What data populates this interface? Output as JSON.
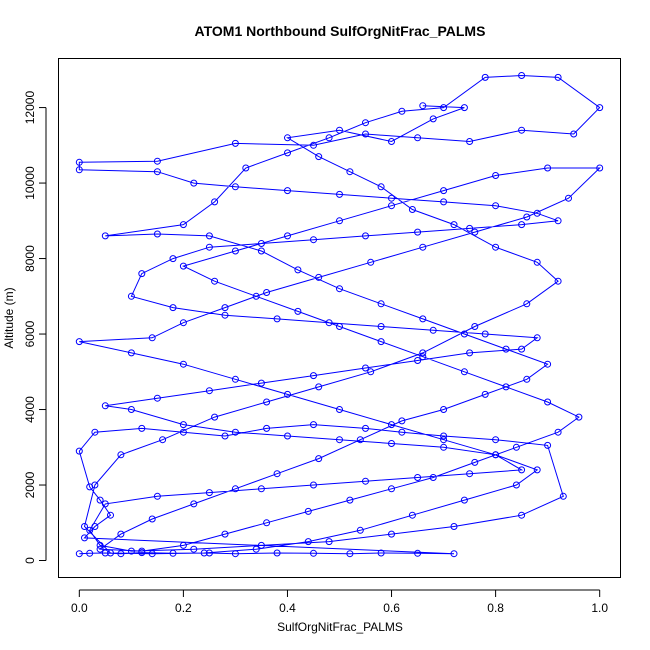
{
  "chart_data": {
    "type": "line",
    "title": "ATOM1 Northbound SulfOrgNitFrac_PALMS",
    "xlabel": "SulfOrgNitFrac_PALMS",
    "ylabel": "Altitude (m)",
    "xlim": [
      -0.04,
      1.04
    ],
    "ylim": [
      -450,
      13300
    ],
    "xticks": [
      0.0,
      0.2,
      0.4,
      0.6,
      0.8,
      1.0
    ],
    "xtick_labels": [
      "0.0",
      "0.2",
      "0.4",
      "0.6",
      "0.8",
      "1.0"
    ],
    "yticks": [
      0,
      2000,
      4000,
      6000,
      8000,
      10000,
      12000
    ],
    "ytick_labels": [
      "0",
      "2000",
      "4000",
      "6000",
      "8000",
      "10000",
      "12000"
    ],
    "grid": false,
    "marker": "open-circle",
    "series": [
      {
        "color": "#0000ff",
        "points": [
          [
            0.0,
            180
          ],
          [
            0.02,
            190
          ],
          [
            0.05,
            200
          ],
          [
            0.08,
            180
          ],
          [
            0.12,
            210
          ],
          [
            0.18,
            190
          ],
          [
            0.25,
            200
          ],
          [
            0.3,
            180
          ],
          [
            0.38,
            200
          ],
          [
            0.45,
            190
          ],
          [
            0.52,
            180
          ],
          [
            0.58,
            200
          ],
          [
            0.65,
            190
          ],
          [
            0.72,
            180
          ],
          [
            0.01,
            600
          ],
          [
            0.03,
            900
          ],
          [
            0.06,
            1200
          ],
          [
            0.04,
            1600
          ],
          [
            0.02,
            1950
          ],
          [
            0.0,
            2900
          ],
          [
            0.03,
            3400
          ],
          [
            0.12,
            3500
          ],
          [
            0.2,
            3400
          ],
          [
            0.28,
            3300
          ],
          [
            0.36,
            3500
          ],
          [
            0.45,
            3600
          ],
          [
            0.55,
            3500
          ],
          [
            0.62,
            3400
          ],
          [
            0.7,
            3300
          ],
          [
            0.8,
            3200
          ],
          [
            0.9,
            3050
          ],
          [
            0.93,
            1700
          ],
          [
            0.85,
            1200
          ],
          [
            0.72,
            900
          ],
          [
            0.6,
            700
          ],
          [
            0.48,
            500
          ],
          [
            0.35,
            400
          ],
          [
            0.22,
            300
          ],
          [
            0.1,
            250
          ],
          [
            0.04,
            400
          ],
          [
            0.02,
            800
          ],
          [
            0.05,
            1500
          ],
          [
            0.15,
            1700
          ],
          [
            0.25,
            1800
          ],
          [
            0.35,
            1900
          ],
          [
            0.45,
            2000
          ],
          [
            0.55,
            2100
          ],
          [
            0.65,
            2200
          ],
          [
            0.75,
            2300
          ],
          [
            0.85,
            2400
          ],
          [
            0.8,
            2800
          ],
          [
            0.7,
            3000
          ],
          [
            0.6,
            3100
          ],
          [
            0.5,
            3200
          ],
          [
            0.4,
            3300
          ],
          [
            0.3,
            3400
          ],
          [
            0.2,
            3600
          ],
          [
            0.1,
            4000
          ],
          [
            0.05,
            4100
          ],
          [
            0.15,
            4300
          ],
          [
            0.25,
            4500
          ],
          [
            0.35,
            4700
          ],
          [
            0.45,
            4900
          ],
          [
            0.55,
            5100
          ],
          [
            0.65,
            5300
          ],
          [
            0.75,
            5500
          ],
          [
            0.85,
            5600
          ],
          [
            0.88,
            5900
          ],
          [
            0.78,
            6000
          ],
          [
            0.68,
            6100
          ],
          [
            0.58,
            6200
          ],
          [
            0.48,
            6300
          ],
          [
            0.38,
            6400
          ],
          [
            0.28,
            6500
          ],
          [
            0.18,
            6700
          ],
          [
            0.1,
            7000
          ],
          [
            0.12,
            7600
          ],
          [
            0.18,
            8000
          ],
          [
            0.25,
            8300
          ],
          [
            0.35,
            8400
          ],
          [
            0.45,
            8500
          ],
          [
            0.55,
            8600
          ],
          [
            0.65,
            8700
          ],
          [
            0.75,
            8800
          ],
          [
            0.85,
            8900
          ],
          [
            0.92,
            9000
          ],
          [
            0.88,
            9200
          ],
          [
            0.8,
            9400
          ],
          [
            0.7,
            9500
          ],
          [
            0.6,
            9600
          ],
          [
            0.5,
            9700
          ],
          [
            0.4,
            9800
          ],
          [
            0.3,
            9900
          ],
          [
            0.22,
            10000
          ],
          [
            0.15,
            10300
          ],
          [
            0.0,
            10350
          ],
          [
            0.0,
            10550
          ],
          [
            0.15,
            10580
          ],
          [
            0.3,
            11050
          ],
          [
            0.45,
            11000
          ],
          [
            0.55,
            11300
          ],
          [
            0.65,
            11200
          ],
          [
            0.75,
            11100
          ],
          [
            0.85,
            11400
          ],
          [
            0.95,
            11300
          ],
          [
            1.0,
            12000
          ],
          [
            0.92,
            12800
          ],
          [
            0.85,
            12850
          ],
          [
            0.78,
            12800
          ],
          [
            0.7,
            12000
          ],
          [
            0.62,
            11900
          ],
          [
            0.55,
            11600
          ],
          [
            0.48,
            11200
          ],
          [
            0.4,
            10800
          ],
          [
            0.32,
            10400
          ],
          [
            0.26,
            9500
          ],
          [
            0.2,
            8900
          ],
          [
            0.05,
            8600
          ],
          [
            0.15,
            8650
          ],
          [
            0.25,
            8600
          ],
          [
            0.35,
            8200
          ],
          [
            0.42,
            7700
          ],
          [
            0.5,
            7200
          ],
          [
            0.58,
            6800
          ],
          [
            0.66,
            6400
          ],
          [
            0.74,
            6000
          ],
          [
            0.82,
            5600
          ],
          [
            0.9,
            5200
          ],
          [
            0.86,
            4800
          ],
          [
            0.78,
            4400
          ],
          [
            0.7,
            4000
          ],
          [
            0.62,
            3700
          ],
          [
            0.54,
            3200
          ],
          [
            0.46,
            2700
          ],
          [
            0.38,
            2300
          ],
          [
            0.3,
            1900
          ],
          [
            0.22,
            1500
          ],
          [
            0.14,
            1100
          ],
          [
            0.08,
            700
          ],
          [
            0.04,
            300
          ],
          [
            0.12,
            250
          ],
          [
            0.2,
            400
          ],
          [
            0.28,
            700
          ],
          [
            0.36,
            1000
          ],
          [
            0.44,
            1300
          ],
          [
            0.52,
            1600
          ],
          [
            0.6,
            1900
          ],
          [
            0.68,
            2200
          ],
          [
            0.76,
            2600
          ],
          [
            0.84,
            3000
          ],
          [
            0.92,
            3400
          ],
          [
            0.96,
            3800
          ],
          [
            0.9,
            4200
          ],
          [
            0.82,
            4600
          ],
          [
            0.74,
            5000
          ],
          [
            0.66,
            5400
          ],
          [
            0.58,
            5800
          ],
          [
            0.5,
            6200
          ],
          [
            0.42,
            6600
          ],
          [
            0.34,
            7000
          ],
          [
            0.26,
            7400
          ],
          [
            0.2,
            7800
          ],
          [
            0.3,
            8200
          ],
          [
            0.4,
            8600
          ],
          [
            0.5,
            9000
          ],
          [
            0.6,
            9400
          ],
          [
            0.7,
            9800
          ],
          [
            0.8,
            10200
          ],
          [
            0.9,
            10400
          ],
          [
            1.0,
            10400
          ],
          [
            0.94,
            9600
          ],
          [
            0.86,
            9100
          ],
          [
            0.76,
            8700
          ],
          [
            0.66,
            8300
          ],
          [
            0.56,
            7900
          ],
          [
            0.46,
            7500
          ],
          [
            0.36,
            7100
          ],
          [
            0.28,
            6700
          ],
          [
            0.2,
            6300
          ],
          [
            0.14,
            5900
          ],
          [
            0.0,
            5800
          ],
          [
            0.1,
            5500
          ],
          [
            0.2,
            5200
          ],
          [
            0.3,
            4800
          ],
          [
            0.4,
            4400
          ],
          [
            0.5,
            4000
          ],
          [
            0.6,
            3600
          ],
          [
            0.7,
            3200
          ],
          [
            0.8,
            2800
          ],
          [
            0.88,
            2400
          ],
          [
            0.84,
            2000
          ],
          [
            0.74,
            1600
          ],
          [
            0.64,
            1200
          ],
          [
            0.54,
            800
          ],
          [
            0.44,
            500
          ],
          [
            0.34,
            300
          ],
          [
            0.24,
            200
          ],
          [
            0.14,
            180
          ],
          [
            0.06,
            200
          ],
          [
            0.01,
            900
          ],
          [
            0.03,
            2000
          ],
          [
            0.08,
            2800
          ],
          [
            0.16,
            3200
          ],
          [
            0.26,
            3800
          ],
          [
            0.36,
            4200
          ],
          [
            0.46,
            4600
          ],
          [
            0.56,
            5000
          ],
          [
            0.66,
            5500
          ],
          [
            0.76,
            6200
          ],
          [
            0.86,
            6800
          ],
          [
            0.92,
            7400
          ],
          [
            0.88,
            7900
          ],
          [
            0.8,
            8300
          ],
          [
            0.72,
            8900
          ],
          [
            0.64,
            9300
          ],
          [
            0.58,
            9900
          ],
          [
            0.52,
            10300
          ],
          [
            0.46,
            10700
          ],
          [
            0.4,
            11200
          ],
          [
            0.5,
            11400
          ],
          [
            0.6,
            11100
          ],
          [
            0.68,
            11700
          ],
          [
            0.74,
            12000
          ],
          [
            0.66,
            12050
          ]
        ]
      }
    ]
  }
}
